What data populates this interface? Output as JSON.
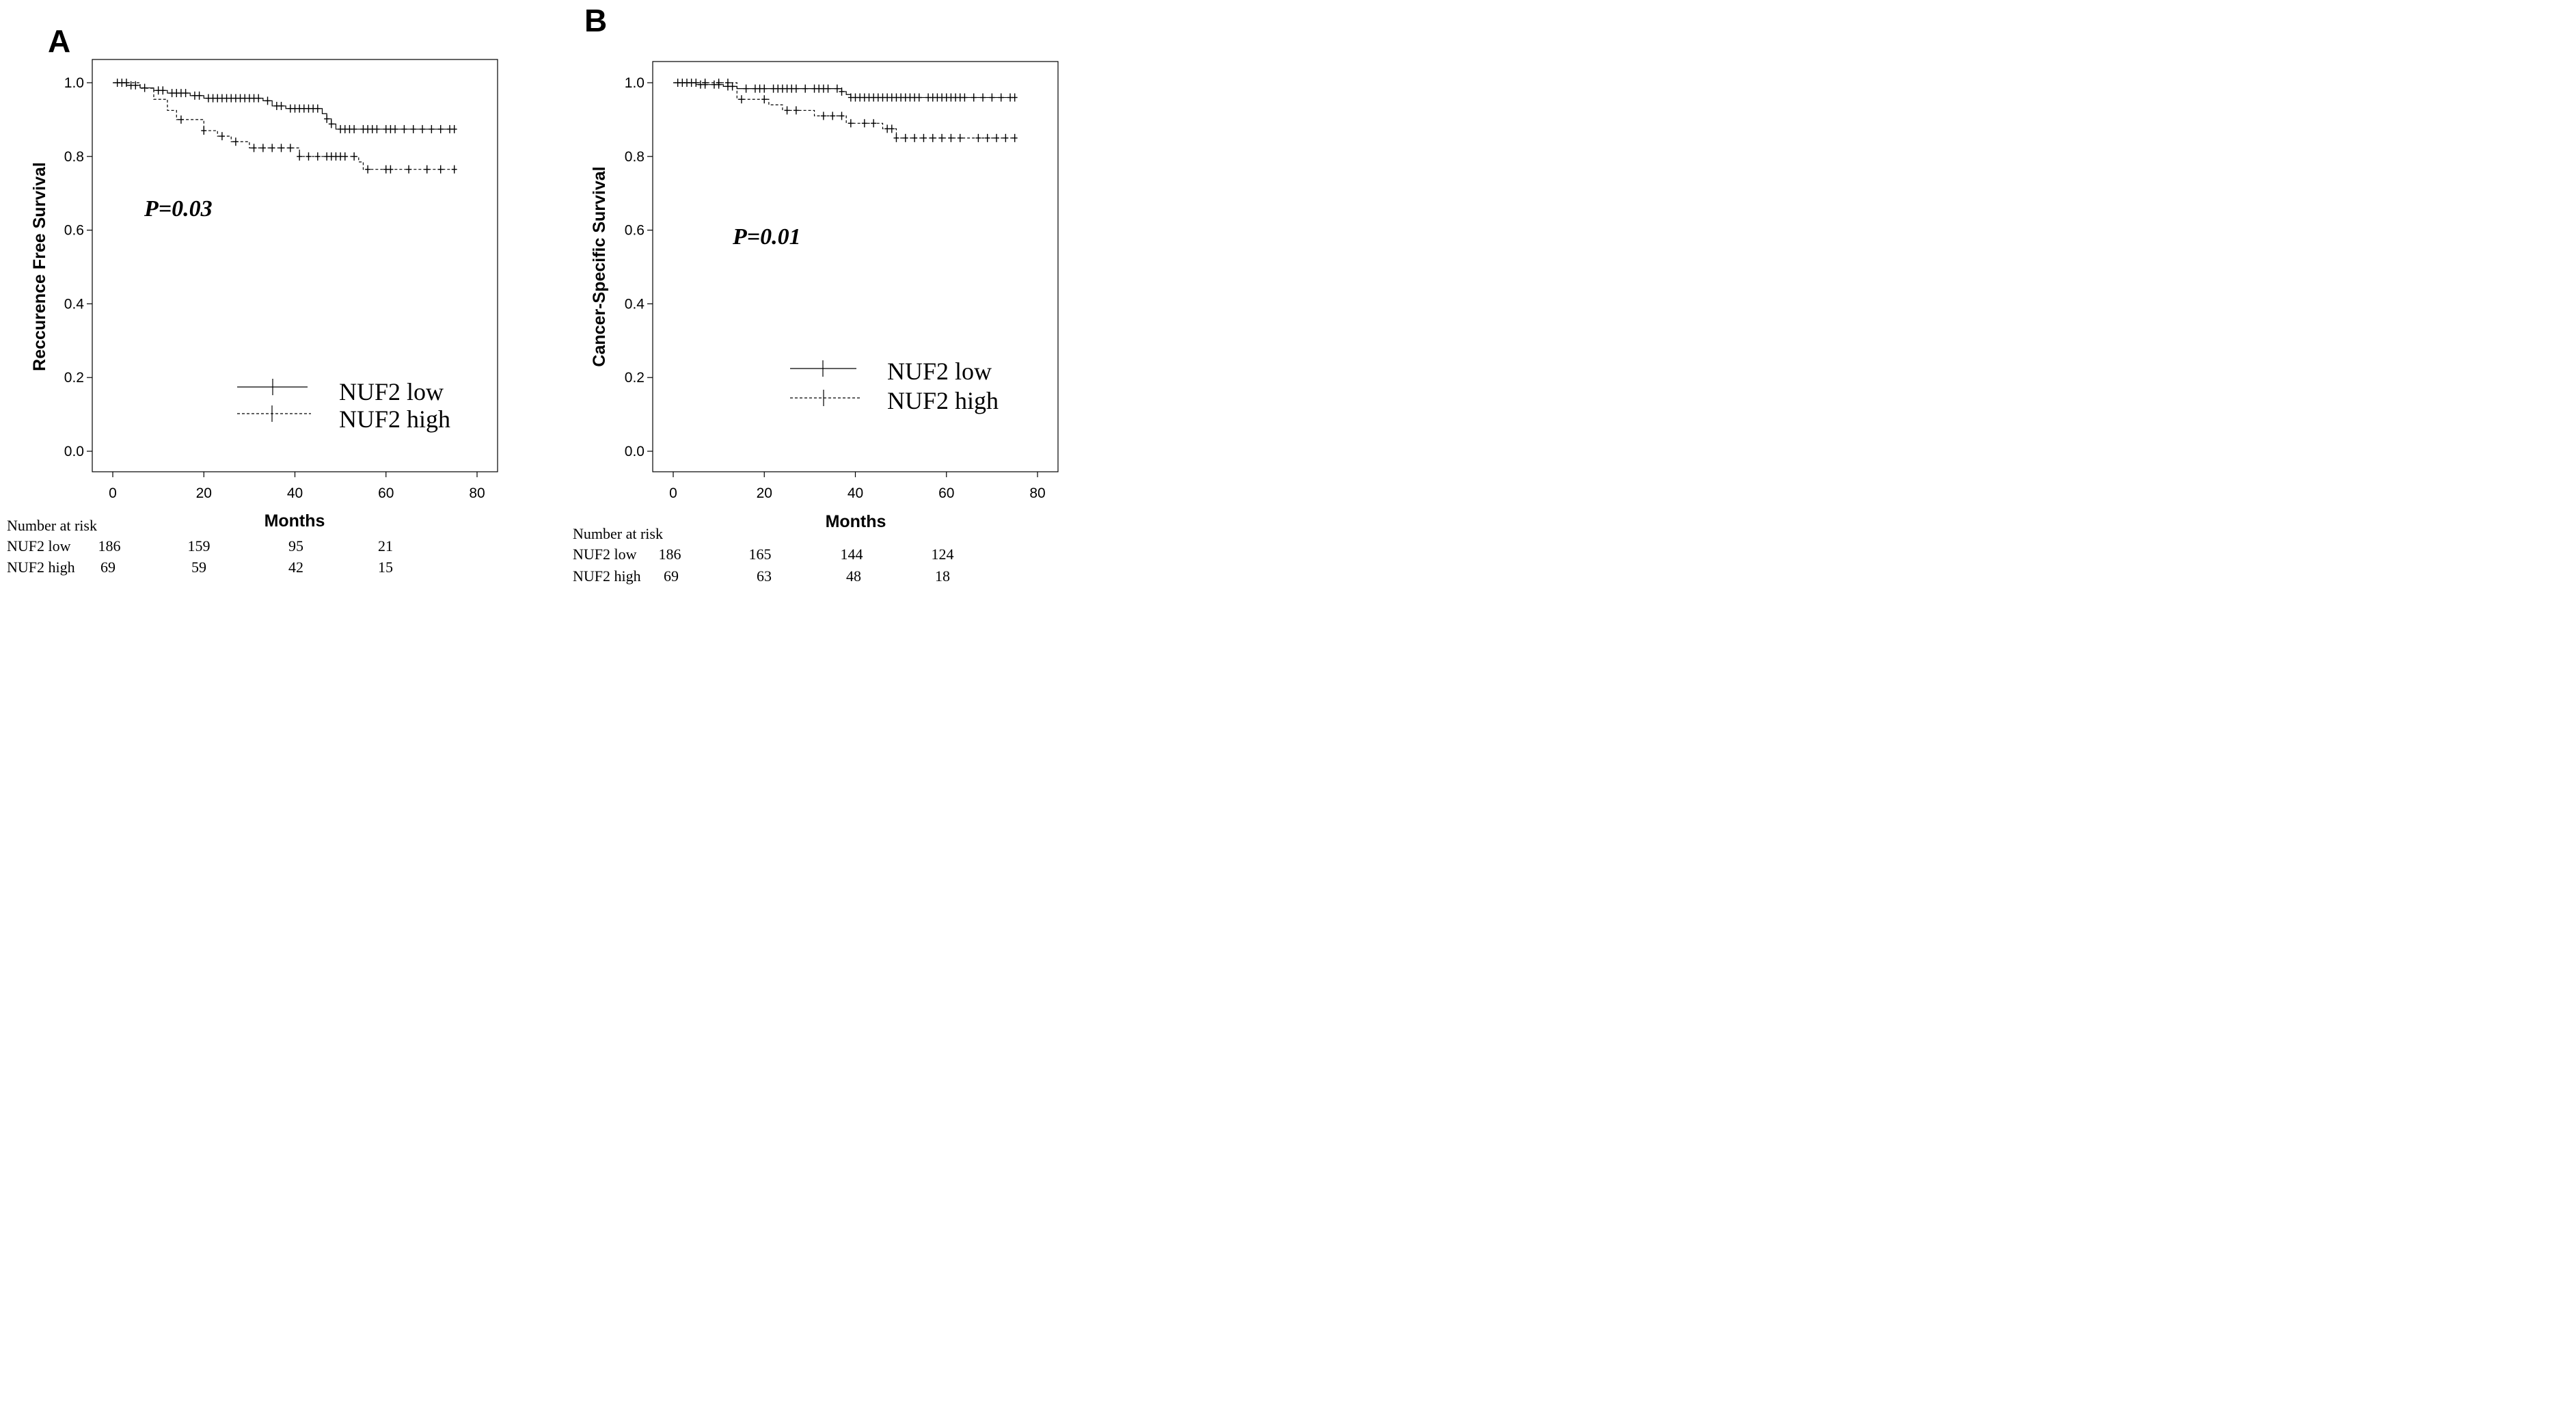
{
  "chart_data": [
    {
      "type": "line",
      "panel_label": "A",
      "xlabel": "Months",
      "ylabel": "Reccurence Free Survival",
      "xlim": [
        -5,
        80
      ],
      "ylim": [
        -0.05,
        1.05
      ],
      "x_ticks": [
        "0",
        "20",
        "40",
        "60",
        "80"
      ],
      "y_ticks": [
        "0.0",
        "0.2",
        "0.4",
        "0.6",
        "0.8",
        "1.0"
      ],
      "grid": false,
      "annotation": "P=0.03",
      "legend": [
        "NUF2 low",
        "NUF2 high"
      ],
      "legend_position": "bottom-right",
      "series": [
        {
          "name": "NUF2 low",
          "style": "solid",
          "steps": [
            [
              0,
              1.0
            ],
            [
              3,
              0.993
            ],
            [
              6,
              0.986
            ],
            [
              9,
              0.979
            ],
            [
              12,
              0.972
            ],
            [
              17,
              0.965
            ],
            [
              20,
              0.958
            ],
            [
              33,
              0.951
            ],
            [
              35,
              0.937
            ],
            [
              38,
              0.93
            ],
            [
              46,
              0.916
            ],
            [
              47,
              0.902
            ],
            [
              48,
              0.888
            ],
            [
              49,
              0.874
            ],
            [
              75,
              0.874
            ]
          ],
          "censored": [
            1,
            2,
            4,
            5,
            7,
            10,
            11,
            13,
            14,
            15,
            16,
            18,
            19,
            21,
            22,
            23,
            24,
            25,
            26,
            27,
            28,
            29,
            30,
            31,
            32,
            34,
            36,
            37,
            39,
            40,
            41,
            42,
            43,
            44,
            45,
            47,
            48,
            50,
            51,
            52,
            53,
            55,
            56,
            57,
            58,
            60,
            61,
            62,
            64,
            66,
            68,
            70,
            72,
            74,
            75
          ]
        },
        {
          "name": "NUF2 high",
          "style": "dashed",
          "steps": [
            [
              0,
              1.0
            ],
            [
              6,
              0.985
            ],
            [
              9,
              0.955
            ],
            [
              12,
              0.925
            ],
            [
              14,
              0.9
            ],
            [
              20,
              0.87
            ],
            [
              23,
              0.855
            ],
            [
              26,
              0.84
            ],
            [
              30,
              0.823
            ],
            [
              41,
              0.8
            ],
            [
              54,
              0.785
            ],
            [
              55,
              0.765
            ],
            [
              75,
              0.765
            ]
          ],
          "censored": [
            3,
            15,
            20,
            24,
            27,
            31,
            33,
            35,
            37,
            39,
            41,
            43,
            45,
            47,
            48,
            49,
            50,
            51,
            53,
            56,
            60,
            61,
            65,
            69,
            72,
            75
          ]
        }
      ],
      "risk_table": {
        "title": "Number at risk",
        "rows": [
          {
            "label": "NUF2 low",
            "values": [
              "186",
              "159",
              "95",
              "21"
            ]
          },
          {
            "label": "NUF2 high",
            "values": [
              "69",
              "59",
              "42",
              "15"
            ]
          }
        ]
      }
    },
    {
      "type": "line",
      "panel_label": "B",
      "xlabel": "Months",
      "ylabel": "Cancer-Specific Survival",
      "xlim": [
        -5,
        80
      ],
      "ylim": [
        -0.05,
        1.05
      ],
      "x_ticks": [
        "0",
        "20",
        "40",
        "60",
        "80"
      ],
      "y_ticks": [
        "0.0",
        "0.2",
        "0.4",
        "0.6",
        "0.8",
        "1.0"
      ],
      "grid": false,
      "annotation": "P=0.01",
      "legend": [
        "NUF2 low",
        "NUF2 high"
      ],
      "legend_position": "bottom-right",
      "series": [
        {
          "name": "NUF2 low",
          "style": "solid",
          "steps": [
            [
              0,
              1.0
            ],
            [
              5,
              0.995
            ],
            [
              11,
              0.99
            ],
            [
              14,
              0.984
            ],
            [
              37,
              0.976
            ],
            [
              38,
              0.968
            ],
            [
              39,
              0.96
            ],
            [
              75,
              0.96
            ]
          ],
          "censored": [
            1,
            3,
            4,
            6,
            7,
            9,
            10,
            12,
            13,
            16,
            18,
            19,
            20,
            22,
            23,
            24,
            25,
            26,
            27,
            29,
            31,
            32,
            33,
            34,
            36,
            37,
            39,
            40,
            41,
            42,
            43,
            44,
            45,
            46,
            47,
            48,
            49,
            50,
            51,
            52,
            53,
            54,
            56,
            57,
            58,
            59,
            60,
            61,
            62,
            63,
            64,
            66,
            68,
            70,
            72,
            74,
            75
          ]
        },
        {
          "name": "NUF2 high",
          "style": "dashed",
          "steps": [
            [
              0,
              1.0
            ],
            [
              14,
              0.955
            ],
            [
              21,
              0.94
            ],
            [
              24,
              0.925
            ],
            [
              31,
              0.91
            ],
            [
              38,
              0.89
            ],
            [
              46,
              0.875
            ],
            [
              49,
              0.85
            ],
            [
              75,
              0.85
            ]
          ],
          "censored": [
            2,
            5,
            7,
            10,
            12,
            15,
            20,
            25,
            27,
            33,
            35,
            37,
            39,
            42,
            44,
            47,
            48,
            49,
            51,
            53,
            55,
            57,
            59,
            61,
            63,
            67,
            69,
            71,
            73,
            75
          ]
        }
      ],
      "risk_table": {
        "title": "Number at risk",
        "rows": [
          {
            "label": "NUF2 low",
            "values": [
              "186",
              "165",
              "144",
              "124"
            ]
          },
          {
            "label": "NUF2 high",
            "values": [
              "69",
              "63",
              "48",
              "18"
            ]
          }
        ]
      }
    }
  ]
}
